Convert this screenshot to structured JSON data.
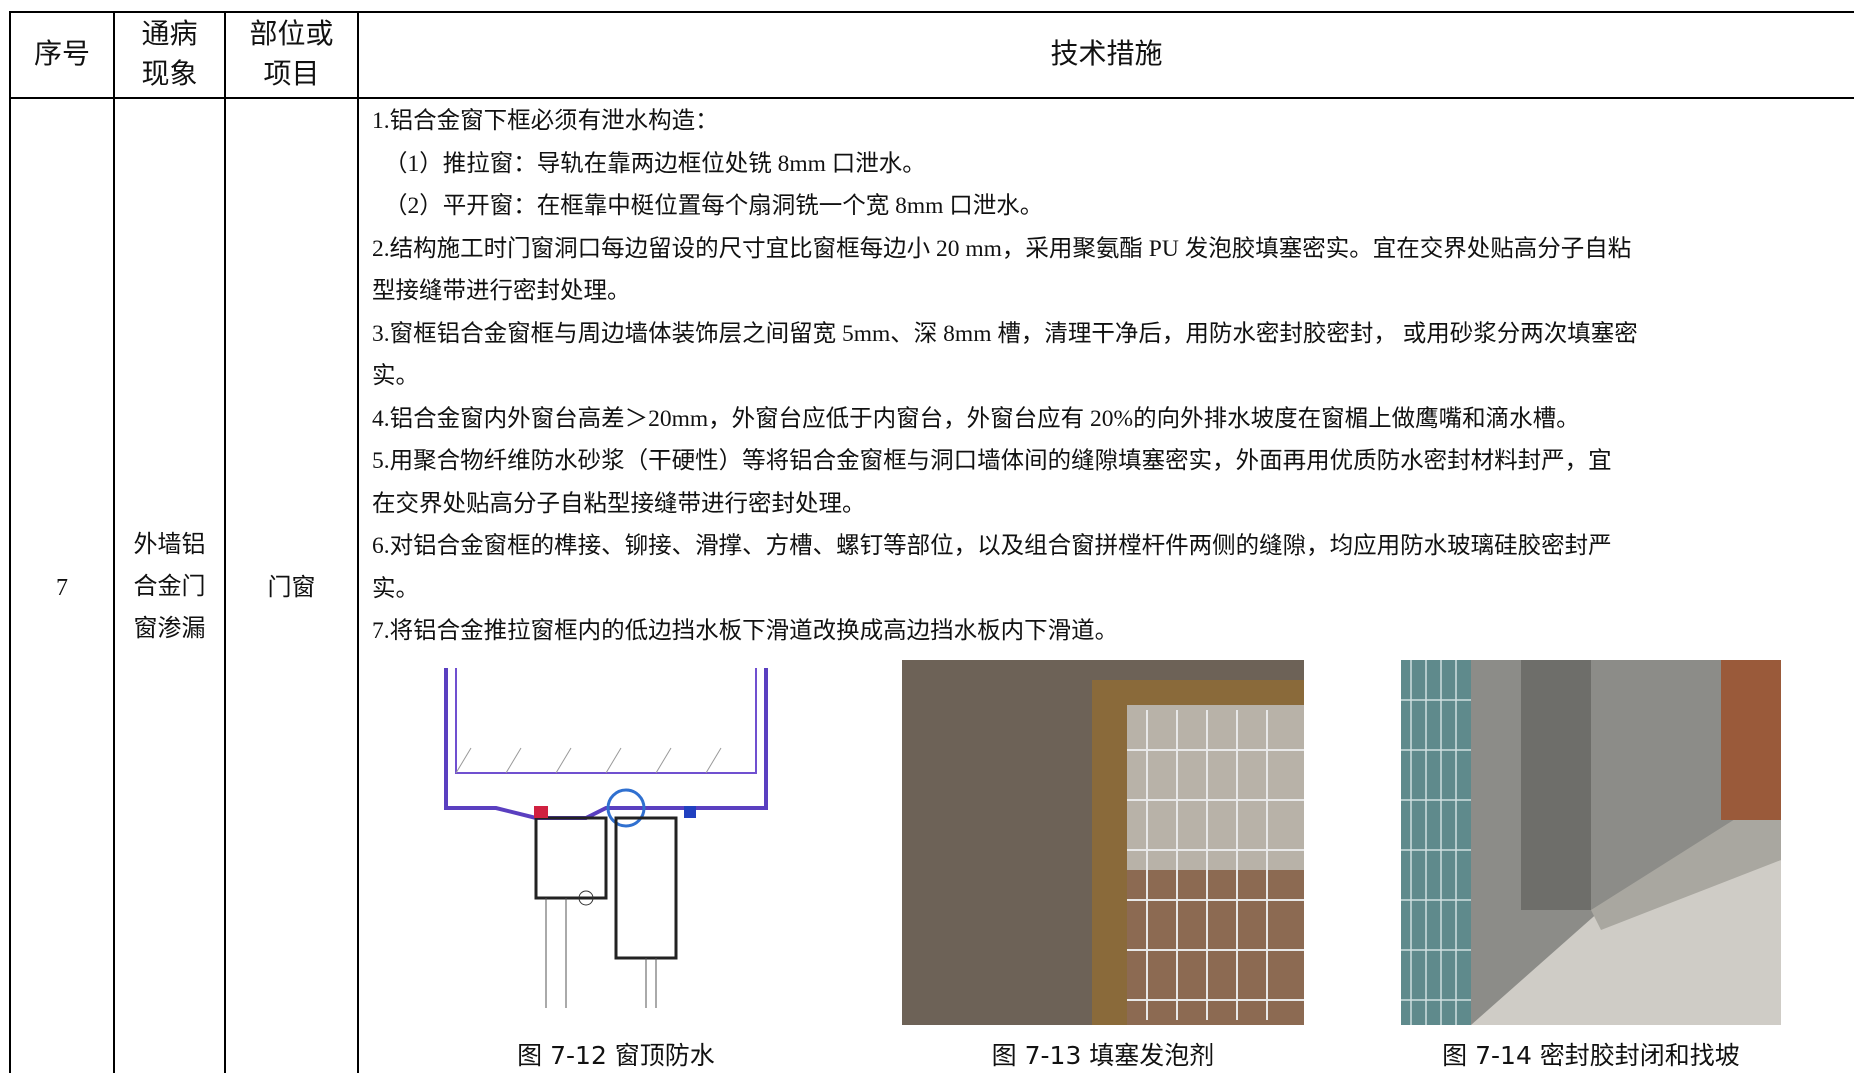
{
  "table": {
    "header": [
      [
        "序号"
      ],
      [
        "通病",
        "现象"
      ],
      [
        "部位或",
        "项目"
      ],
      [
        "技术措施"
      ]
    ],
    "rows": [
      {
        "no": "7",
        "defect": [
          "外墙铝",
          "合金门",
          "窗渗漏"
        ],
        "location": "门窗",
        "measures": [
          "1.铝合金窗下框必须有泄水构造：",
          "（1）推拉窗：导轨在靠两边框位处铣 8mm 口泄水。",
          "（2）平开窗：在框靠中梃位置每个扇洞铣一个宽 8mm 口泄水。",
          "2.结构施工时门窗洞口每边留设的尺寸宜比窗框每边小 20 mm，采用聚氨酯 PU 发泡胶填塞密实。宜在交界处贴高分子自粘",
          "型接缝带进行密封处理。",
          "3.窗框铝合金窗框与周边墙体装饰层之间留宽 5mm、深 8mm 槽，清理干净后，用防水密封胶密封， 或用砂浆分两次填塞密",
          "实。",
          "4.铝合金窗内外窗台高差＞20mm，外窗台应低于内窗台，外窗台应有 20%的向外排水坡度在窗楣上做鹰嘴和滴水槽。",
          "5.用聚合物纤维防水砂浆（干硬性）等将铝合金窗框与洞口墙体间的缝隙填塞密实，外面再用优质防水密封材料封严，宜",
          "在交界处贴高分子自粘型接缝带进行密封处理。",
          "6.对铝合金窗框的榫接、铆接、滑撑、方槽、螺钉等部位，以及组合窗拼樘杆件两侧的缝隙，均应用防水玻璃硅胶密封严",
          "实。",
          "7.将铝合金推拉窗框内的低边挡水板下滑道改换成高边挡水板内下滑道。"
        ],
        "figures": [
          "图 7-12  窗顶防水",
          "图 7-13  填塞发泡剂",
          "图 7-14  密封胶封闭和找坡"
        ]
      }
    ]
  }
}
